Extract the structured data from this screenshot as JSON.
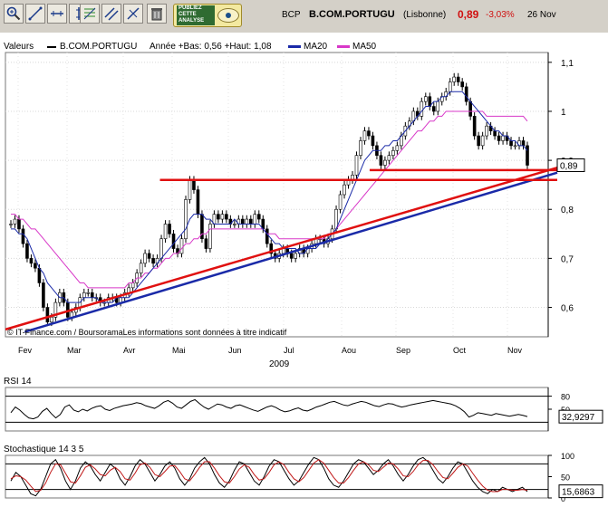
{
  "toolbar": {
    "tools": [
      "zoom-in-tool",
      "zoom-out-tool",
      "trendline-tool",
      "horizontal-line-tool",
      "vertical-line-tool",
      "fibonacci-tool",
      "parallel-lines-tool",
      "angle-line-tool",
      "delete-tool"
    ],
    "ad": {
      "line1": "PUBLIEZ",
      "line2": "CETTE",
      "line3": "ANALYSE"
    }
  },
  "quote": {
    "ticker": "BCP",
    "name": "B.COM.PORTUGU",
    "market": "(Lisbonne)",
    "price": "0,89",
    "change": "-3,03%",
    "date": "26 Nov"
  },
  "legend": {
    "label": "Valeurs",
    "series_name": "B.COM.PORTUGU",
    "range": "Année +Bas: 0,56 +Haut: 1,08",
    "ma20": "MA20",
    "ma50": "MA50"
  },
  "colors": {
    "ma20": "#1a2aa8",
    "ma50": "#d838c8",
    "trend_red": "#e01010",
    "trend_blue": "#1a2aa8",
    "candle_up": "#2a8a2a",
    "candle_down": "#c01818",
    "price_red": "#d01010"
  },
  "credit": "© IT-Finance.com / BoursoramaLes informations sont données à titre indicatif",
  "chart_data": [
    {
      "type": "candlestick",
      "title": "B.COM.PORTUGU",
      "xlabel": "2009",
      "ylabel": "",
      "ylim": [
        0.54,
        1.12
      ],
      "x_ticks": [
        "Fev",
        "Mar",
        "Avr",
        "Mai",
        "Jun",
        "Jul",
        "Aou",
        "Sep",
        "Oct",
        "Nov"
      ],
      "y_ticks": [
        "1,1",
        "1",
        "0,9",
        "0,8",
        "0,7",
        "0,6"
      ],
      "y_tick_values": [
        1.1,
        1.0,
        0.9,
        0.8,
        0.7,
        0.6
      ],
      "last_value_label": "0,89",
      "last_value": 0.89,
      "series": [
        {
          "name": "B.COM.PORTUGU",
          "close": [
            0.77,
            0.78,
            0.76,
            0.73,
            0.7,
            0.69,
            0.68,
            0.65,
            0.6,
            0.57,
            0.58,
            0.61,
            0.63,
            0.61,
            0.58,
            0.59,
            0.6,
            0.62,
            0.63,
            0.63,
            0.62,
            0.62,
            0.61,
            0.61,
            0.62,
            0.62,
            0.61,
            0.62,
            0.63,
            0.64,
            0.65,
            0.67,
            0.69,
            0.71,
            0.7,
            0.69,
            0.7,
            0.74,
            0.77,
            0.75,
            0.72,
            0.71,
            0.74,
            0.82,
            0.86,
            0.84,
            0.79,
            0.74,
            0.72,
            0.77,
            0.79,
            0.78,
            0.79,
            0.78,
            0.77,
            0.77,
            0.78,
            0.77,
            0.78,
            0.77,
            0.79,
            0.78,
            0.76,
            0.73,
            0.71,
            0.7,
            0.71,
            0.72,
            0.71,
            0.7,
            0.71,
            0.72,
            0.71,
            0.72,
            0.73,
            0.74,
            0.74,
            0.73,
            0.74,
            0.76,
            0.8,
            0.83,
            0.85,
            0.86,
            0.87,
            0.91,
            0.94,
            0.96,
            0.95,
            0.93,
            0.91,
            0.89,
            0.9,
            0.91,
            0.92,
            0.93,
            0.95,
            0.97,
            0.98,
            1.0,
            0.99,
            1.02,
            1.03,
            1.01,
            1.0,
            1.02,
            1.03,
            1.04,
            1.06,
            1.07,
            1.06,
            1.05,
            1.02,
            0.99,
            0.95,
            0.93,
            0.95,
            0.97,
            0.96,
            0.95,
            0.94,
            0.95,
            0.94,
            0.93,
            0.93,
            0.94,
            0.93,
            0.89
          ]
        },
        {
          "name": "MA20",
          "values": [
            0.76,
            0.76,
            0.75,
            0.75,
            0.74,
            0.72,
            0.7,
            0.68,
            0.67,
            0.65,
            0.64,
            0.63,
            0.62,
            0.62,
            0.61,
            0.61,
            0.61,
            0.61,
            0.62,
            0.62,
            0.62,
            0.62,
            0.61,
            0.61,
            0.61,
            0.61,
            0.62,
            0.62,
            0.62,
            0.62,
            0.63,
            0.64,
            0.65,
            0.66,
            0.67,
            0.68,
            0.69,
            0.7,
            0.71,
            0.72,
            0.73,
            0.74,
            0.75,
            0.76,
            0.78,
            0.79,
            0.79,
            0.79,
            0.78,
            0.78,
            0.77,
            0.77,
            0.77,
            0.77,
            0.77,
            0.78,
            0.77,
            0.77,
            0.77,
            0.77,
            0.77,
            0.77,
            0.76,
            0.75,
            0.74,
            0.73,
            0.73,
            0.72,
            0.72,
            0.72,
            0.72,
            0.71,
            0.71,
            0.72,
            0.72,
            0.72,
            0.73,
            0.73,
            0.74,
            0.75,
            0.76,
            0.78,
            0.8,
            0.82,
            0.84,
            0.86,
            0.88,
            0.9,
            0.91,
            0.92,
            0.92,
            0.92,
            0.93,
            0.93,
            0.94,
            0.94,
            0.95,
            0.96,
            0.97,
            0.98,
            0.99,
            1.0,
            1.01,
            1.01,
            1.02,
            1.02,
            1.03,
            1.03,
            1.04,
            1.04,
            1.04,
            1.04,
            1.03,
            1.02,
            1.01,
            1.0,
            0.99,
            0.98,
            0.97,
            0.96,
            0.96,
            0.95,
            0.95,
            0.94,
            0.94,
            0.93,
            0.93,
            0.92
          ]
        },
        {
          "name": "MA50",
          "values": [
            0.79,
            0.79,
            0.78,
            0.78,
            0.77,
            0.76,
            0.76,
            0.75,
            0.74,
            0.73,
            0.72,
            0.71,
            0.7,
            0.69,
            0.68,
            0.67,
            0.66,
            0.65,
            0.65,
            0.64,
            0.64,
            0.64,
            0.64,
            0.64,
            0.64,
            0.64,
            0.64,
            0.64,
            0.64,
            0.65,
            0.65,
            0.66,
            0.66,
            0.67,
            0.67,
            0.68,
            0.68,
            0.69,
            0.7,
            0.7,
            0.71,
            0.71,
            0.72,
            0.73,
            0.73,
            0.74,
            0.74,
            0.75,
            0.75,
            0.76,
            0.76,
            0.76,
            0.76,
            0.76,
            0.76,
            0.76,
            0.76,
            0.76,
            0.76,
            0.76,
            0.76,
            0.76,
            0.76,
            0.75,
            0.75,
            0.75,
            0.74,
            0.74,
            0.74,
            0.74,
            0.74,
            0.74,
            0.74,
            0.74,
            0.74,
            0.74,
            0.74,
            0.74,
            0.75,
            0.75,
            0.76,
            0.77,
            0.78,
            0.79,
            0.8,
            0.81,
            0.82,
            0.83,
            0.84,
            0.85,
            0.86,
            0.87,
            0.88,
            0.89,
            0.9,
            0.91,
            0.92,
            0.93,
            0.94,
            0.95,
            0.96,
            0.96,
            0.97,
            0.98,
            0.98,
            0.99,
            0.99,
            1.0,
            1.0,
            1.0,
            1.0,
            1.0,
            1.0,
            1.0,
            1.0,
            1.0,
            1.0,
            0.99,
            0.99,
            0.99,
            0.99,
            0.99,
            0.99,
            0.99,
            0.99,
            0.99,
            0.99,
            0.98
          ]
        }
      ],
      "trendlines": [
        {
          "name": "support-red",
          "from": [
            0.0,
            0.555
          ],
          "to": [
            1.0,
            0.885
          ]
        },
        {
          "name": "support-blue",
          "from": [
            0.035,
            0.55
          ],
          "to": [
            1.0,
            0.875
          ]
        },
        {
          "name": "resistance-red",
          "from": [
            0.28,
            0.86
          ],
          "to": [
            1.0,
            0.86
          ]
        },
        {
          "name": "level-red",
          "from": [
            0.66,
            0.88
          ],
          "to": [
            1.0,
            0.88
          ]
        }
      ]
    },
    {
      "type": "line",
      "title": "RSI 14",
      "ylim": [
        0,
        100
      ],
      "y_ticks": [
        "80",
        "50"
      ],
      "y_tick_values": [
        80,
        50
      ],
      "reference_lines": [
        80,
        20
      ],
      "last_value_label": "32,9297",
      "last_value": 32.93,
      "series": [
        {
          "name": "RSI 14",
          "values": [
            42,
            55,
            48,
            38,
            30,
            28,
            32,
            45,
            52,
            40,
            30,
            38,
            55,
            60,
            48,
            44,
            50,
            46,
            52,
            56,
            58,
            50,
            47,
            52,
            55,
            58,
            60,
            62,
            65,
            63,
            58,
            55,
            52,
            58,
            66,
            70,
            64,
            55,
            52,
            60,
            68,
            72,
            63,
            55,
            50,
            56,
            62,
            60,
            55,
            52,
            58,
            60,
            56,
            52,
            48,
            45,
            50,
            55,
            58,
            54,
            48,
            44,
            46,
            50,
            53,
            48,
            46,
            50,
            55,
            58,
            62,
            66,
            68,
            64,
            60,
            58,
            62,
            65,
            68,
            66,
            62,
            58,
            56,
            60,
            63,
            62,
            58,
            55,
            57,
            60,
            62,
            64,
            66,
            68,
            70,
            68,
            66,
            64,
            62,
            58,
            52,
            44,
            32,
            36,
            42,
            40,
            38,
            36,
            40,
            38,
            36,
            34,
            36,
            38,
            36,
            33
          ]
        }
      ]
    },
    {
      "type": "line",
      "title": "Stochastique 14 3 5",
      "ylim": [
        0,
        100
      ],
      "y_ticks": [
        "100",
        "50",
        "0"
      ],
      "y_tick_values": [
        100,
        50,
        0
      ],
      "reference_lines": [
        80,
        20
      ],
      "last_value_label": "15,6863",
      "last_value": 15.69,
      "series": [
        {
          "name": "%K",
          "values": [
            40,
            60,
            50,
            30,
            10,
            5,
            20,
            50,
            80,
            90,
            70,
            40,
            20,
            40,
            70,
            85,
            75,
            55,
            40,
            60,
            80,
            70,
            45,
            30,
            50,
            75,
            90,
            80,
            60,
            40,
            55,
            75,
            85,
            70,
            45,
            30,
            45,
            70,
            85,
            95,
            80,
            55,
            35,
            25,
            40,
            65,
            85,
            80,
            60,
            40,
            30,
            50,
            75,
            90,
            85,
            65,
            45,
            30,
            40,
            60,
            80,
            95,
            90,
            70,
            45,
            30,
            25,
            40,
            60,
            80,
            90,
            85,
            70,
            55,
            65,
            80,
            90,
            75,
            55,
            40,
            55,
            75,
            90,
            95,
            85,
            65,
            45,
            35,
            50,
            70,
            85,
            80,
            60,
            40,
            25,
            15,
            10,
            20,
            15,
            25,
            20,
            15,
            20,
            25,
            15
          ]
        },
        {
          "name": "%D",
          "values": [
            45,
            52,
            50,
            42,
            28,
            15,
            18,
            35,
            60,
            80,
            78,
            58,
            38,
            35,
            52,
            72,
            78,
            68,
            55,
            52,
            65,
            72,
            62,
            45,
            42,
            58,
            78,
            82,
            72,
            55,
            50,
            62,
            75,
            76,
            62,
            45,
            40,
            55,
            72,
            85,
            85,
            70,
            52,
            38,
            35,
            50,
            68,
            78,
            72,
            55,
            42,
            45,
            60,
            78,
            85,
            78,
            60,
            45,
            38,
            48,
            65,
            82,
            90,
            82,
            65,
            48,
            35,
            35,
            48,
            65,
            80,
            85,
            78,
            65,
            62,
            72,
            82,
            80,
            68,
            52,
            50,
            62,
            78,
            88,
            88,
            78,
            62,
            48,
            45,
            58,
            72,
            80,
            75,
            58,
            42,
            28,
            18,
            15,
            15,
            20,
            20,
            18,
            18,
            20,
            18
          ]
        }
      ]
    }
  ]
}
